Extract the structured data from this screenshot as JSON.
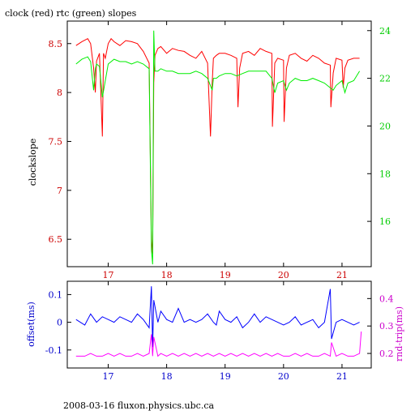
{
  "title": "clock (red) rtc (green) slopes",
  "footer": "2008-03-16 fluxon.physics.ubc.ca",
  "colors": {
    "clock": "#ff0000",
    "rtc": "#00ee00",
    "offset": "#0000ff",
    "rndtrip": "#ff00ff",
    "axis_top_left": "#cc0000",
    "axis_top_right": "#00cc00",
    "axis_bottom_left": "#0000cc",
    "axis_bottom_right": "#cc00cc"
  },
  "chart_data": [
    {
      "type": "line",
      "ylabel": "clockslope",
      "xlim": [
        16.3,
        21.5
      ],
      "x_ticks": [
        "17",
        "18",
        "19",
        "20",
        "21"
      ],
      "left_axis": {
        "ylim": [
          6.22,
          8.73
        ],
        "ticks": [
          "6.5",
          "7",
          "7.5",
          "8",
          "8.5"
        ]
      },
      "right_axis": {
        "ylim": [
          14.1,
          24.4
        ],
        "ticks": [
          "16",
          "18",
          "20",
          "22",
          "24"
        ]
      },
      "series": [
        {
          "name": "clock (red)",
          "axis": "left",
          "x": [
            16.45,
            16.55,
            16.65,
            16.7,
            16.75,
            16.78,
            16.8,
            16.85,
            16.9,
            16.92,
            16.95,
            17.0,
            17.05,
            17.1,
            17.2,
            17.3,
            17.4,
            17.5,
            17.6,
            17.7,
            17.74,
            17.76,
            17.78,
            17.8,
            17.85,
            17.9,
            18.0,
            18.1,
            18.2,
            18.3,
            18.4,
            18.5,
            18.6,
            18.7,
            18.75,
            18.78,
            18.8,
            18.85,
            18.9,
            19.0,
            19.1,
            19.2,
            19.22,
            19.25,
            19.3,
            19.4,
            19.5,
            19.6,
            19.7,
            19.8,
            19.81,
            19.85,
            19.9,
            20.0,
            20.01,
            20.05,
            20.1,
            20.2,
            20.3,
            20.4,
            20.5,
            20.6,
            20.7,
            20.8,
            20.81,
            20.85,
            20.9,
            21.0,
            21.02,
            21.05,
            21.1,
            21.2,
            21.3
          ],
          "y": [
            8.48,
            8.52,
            8.55,
            8.5,
            8.25,
            8.0,
            8.32,
            8.4,
            7.55,
            8.4,
            8.35,
            8.5,
            8.55,
            8.52,
            8.48,
            8.53,
            8.52,
            8.5,
            8.42,
            8.3,
            6.5,
            6.35,
            8.1,
            8.38,
            8.45,
            8.47,
            8.4,
            8.45,
            8.43,
            8.42,
            8.38,
            8.35,
            8.42,
            8.3,
            7.55,
            8.1,
            8.35,
            8.38,
            8.4,
            8.4,
            8.38,
            8.35,
            7.85,
            8.25,
            8.4,
            8.42,
            8.38,
            8.45,
            8.42,
            8.4,
            7.65,
            8.3,
            8.35,
            8.33,
            7.7,
            8.25,
            8.38,
            8.4,
            8.35,
            8.32,
            8.38,
            8.35,
            8.3,
            8.28,
            7.85,
            8.2,
            8.35,
            8.33,
            8.05,
            8.25,
            8.33,
            8.35,
            8.35
          ]
        },
        {
          "name": "rtc (green)",
          "axis": "right",
          "x": [
            16.45,
            16.55,
            16.65,
            16.7,
            16.75,
            16.78,
            16.8,
            16.85,
            16.9,
            17.0,
            17.1,
            17.2,
            17.3,
            17.4,
            17.5,
            17.6,
            17.7,
            17.74,
            17.76,
            17.78,
            17.8,
            17.85,
            17.9,
            18.0,
            18.1,
            18.2,
            18.3,
            18.4,
            18.5,
            18.6,
            18.7,
            18.78,
            18.8,
            18.85,
            18.9,
            19.0,
            19.1,
            19.2,
            19.3,
            19.4,
            19.5,
            19.6,
            19.7,
            19.8,
            19.85,
            19.9,
            20.0,
            20.05,
            20.1,
            20.2,
            20.3,
            20.4,
            20.5,
            20.6,
            20.7,
            20.8,
            20.85,
            20.9,
            21.0,
            21.05,
            21.1,
            21.2,
            21.3
          ],
          "y": [
            22.6,
            22.8,
            22.9,
            22.7,
            21.5,
            22.4,
            22.6,
            22.5,
            21.2,
            22.6,
            22.8,
            22.7,
            22.7,
            22.6,
            22.7,
            22.6,
            22.4,
            14.8,
            14.2,
            24.0,
            22.3,
            22.3,
            22.4,
            22.3,
            22.3,
            22.2,
            22.2,
            22.2,
            22.3,
            22.2,
            22.0,
            21.5,
            22.0,
            22.0,
            22.1,
            22.2,
            22.2,
            22.1,
            22.2,
            22.3,
            22.3,
            22.3,
            22.3,
            22.0,
            21.4,
            21.8,
            21.9,
            21.5,
            21.8,
            22.0,
            21.9,
            21.9,
            22.0,
            21.9,
            21.8,
            21.6,
            21.5,
            21.7,
            21.9,
            21.4,
            21.8,
            21.9,
            22.3
          ]
        }
      ]
    },
    {
      "type": "line",
      "xlim": [
        16.3,
        21.5
      ],
      "x_ticks": [
        "17",
        "18",
        "19",
        "20",
        "21"
      ],
      "left_axis": {
        "ylabel": "offset(ms)",
        "ylim": [
          -0.165,
          0.148
        ],
        "ticks": [
          "-0.1",
          "0",
          "0.1"
        ]
      },
      "right_axis": {
        "ylabel": "rnd-trip(ms)",
        "ylim": [
          0.147,
          0.463
        ],
        "ticks": [
          "0.2",
          "0.3",
          "0.4"
        ]
      },
      "series": [
        {
          "name": "offset",
          "axis": "left",
          "x": [
            16.45,
            16.6,
            16.7,
            16.8,
            16.9,
            17.0,
            17.1,
            17.2,
            17.3,
            17.4,
            17.5,
            17.6,
            17.7,
            17.74,
            17.76,
            17.78,
            17.85,
            17.9,
            18.0,
            18.1,
            18.2,
            18.3,
            18.4,
            18.5,
            18.6,
            18.7,
            18.8,
            18.85,
            18.9,
            19.0,
            19.1,
            19.2,
            19.3,
            19.4,
            19.5,
            19.6,
            19.7,
            19.8,
            19.9,
            20.0,
            20.1,
            20.2,
            20.3,
            20.4,
            20.5,
            20.6,
            20.7,
            20.8,
            20.82,
            20.9,
            21.0,
            21.1,
            21.2,
            21.3
          ],
          "y": [
            0.01,
            -0.01,
            0.03,
            0.0,
            0.02,
            0.01,
            0.0,
            0.02,
            0.01,
            0.0,
            0.03,
            0.01,
            -0.02,
            0.13,
            -0.09,
            0.08,
            0.0,
            0.04,
            0.01,
            0.0,
            0.05,
            0.0,
            0.01,
            0.0,
            0.01,
            0.03,
            0.0,
            -0.01,
            0.04,
            0.01,
            0.0,
            0.02,
            -0.02,
            0.0,
            0.03,
            0.0,
            0.02,
            0.01,
            0.0,
            -0.01,
            0.0,
            0.02,
            -0.01,
            0.0,
            0.01,
            -0.02,
            0.0,
            0.12,
            -0.06,
            0.0,
            0.01,
            0.0,
            -0.01,
            0.0
          ]
        },
        {
          "name": "rnd-trip",
          "axis": "right",
          "x": [
            16.45,
            16.6,
            16.7,
            16.8,
            16.9,
            17.0,
            17.1,
            17.2,
            17.3,
            17.4,
            17.5,
            17.6,
            17.7,
            17.74,
            17.76,
            17.78,
            17.85,
            17.9,
            18.0,
            18.1,
            18.2,
            18.3,
            18.4,
            18.5,
            18.6,
            18.7,
            18.8,
            18.9,
            19.0,
            19.1,
            19.2,
            19.3,
            19.4,
            19.5,
            19.6,
            19.7,
            19.8,
            19.9,
            20.0,
            20.1,
            20.2,
            20.3,
            20.4,
            20.5,
            20.6,
            20.7,
            20.8,
            20.82,
            20.9,
            21.0,
            21.1,
            21.2,
            21.3,
            21.33
          ],
          "y": [
            0.19,
            0.19,
            0.2,
            0.19,
            0.19,
            0.2,
            0.19,
            0.2,
            0.19,
            0.19,
            0.2,
            0.19,
            0.2,
            0.27,
            0.19,
            0.26,
            0.19,
            0.2,
            0.19,
            0.2,
            0.19,
            0.2,
            0.19,
            0.2,
            0.19,
            0.2,
            0.19,
            0.2,
            0.19,
            0.2,
            0.19,
            0.2,
            0.19,
            0.2,
            0.19,
            0.2,
            0.19,
            0.2,
            0.19,
            0.19,
            0.2,
            0.19,
            0.2,
            0.19,
            0.19,
            0.2,
            0.19,
            0.24,
            0.19,
            0.2,
            0.19,
            0.19,
            0.2,
            0.28
          ]
        }
      ]
    }
  ]
}
